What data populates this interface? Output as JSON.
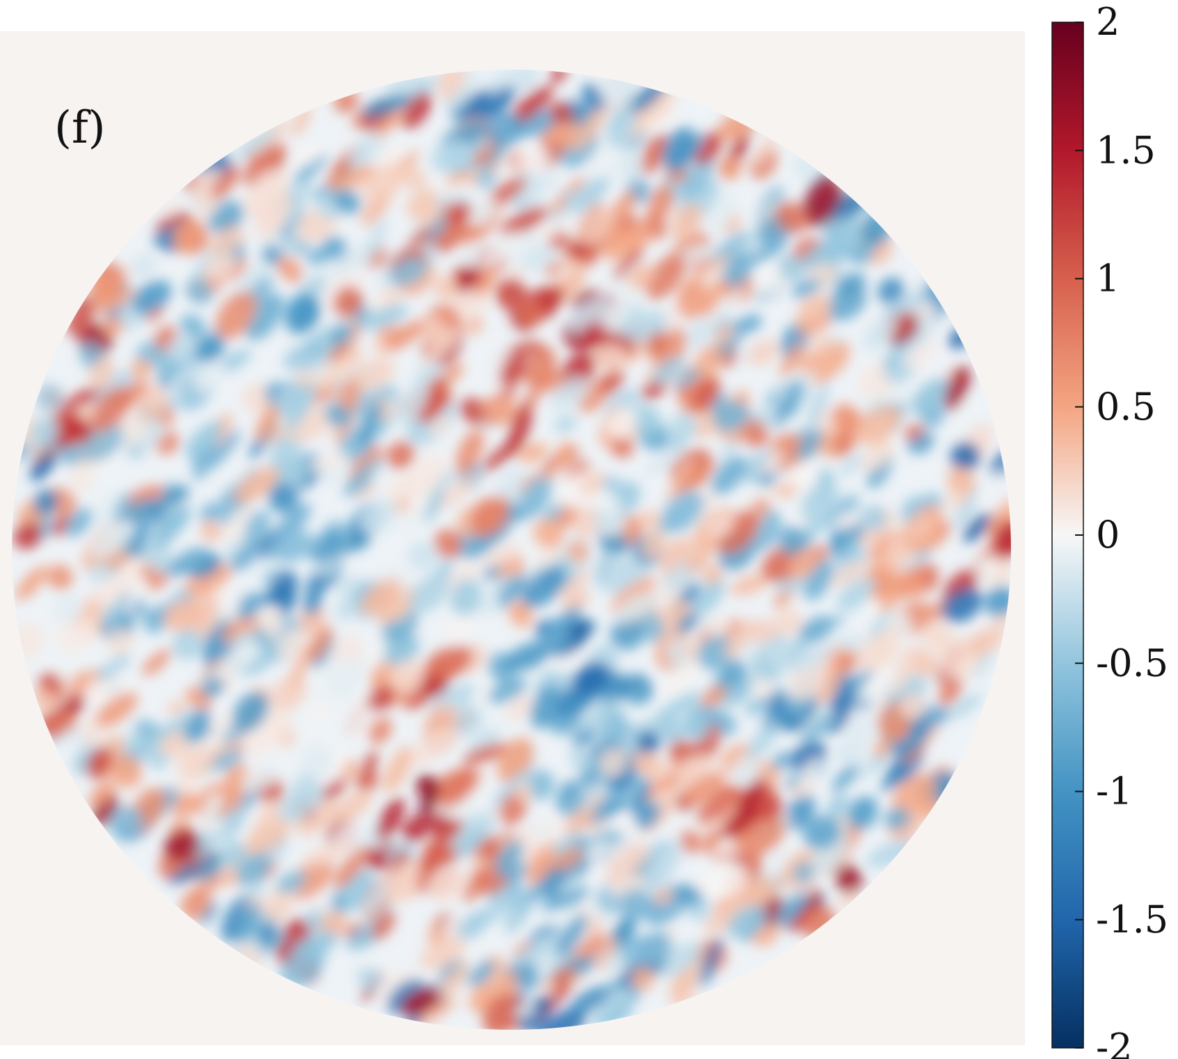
{
  "chart_data": {
    "type": "heatmap",
    "panel_label": "(f)",
    "shape": "circular field, values outside the disk are 0",
    "colormap": "diverging red-blue (RdBu reversed): negative blue, zero white, positive red",
    "colorbar": {
      "orientation": "vertical",
      "placement": "right",
      "range": [
        -2,
        2
      ],
      "ticks": [
        2,
        1.5,
        1,
        0.5,
        0,
        -0.5,
        -1,
        -1.5,
        -2
      ],
      "tick_labels": [
        "2",
        "1.5",
        "1",
        "0.5",
        "0",
        "-0.5",
        "-1",
        "-1.5",
        "-2"
      ]
    },
    "value_range": [
      -2,
      2
    ],
    "notable_regions": [
      {
        "location": "upper-center",
        "sign": "positive",
        "approx_value": 0.8
      },
      {
        "location": "lower-right",
        "sign": "positive",
        "approx_value": 2.0
      },
      {
        "location": "lower-center",
        "sign": "positive",
        "approx_value": 1.3
      },
      {
        "location": "lower-center-right",
        "sign": "negative",
        "approx_value": -1.4
      },
      {
        "location": "left-center",
        "sign": "negative",
        "approx_value": -0.7
      },
      {
        "location": "left edge",
        "sign": "positive",
        "approx_value": 1.6
      },
      {
        "location": "top rim",
        "sign": "negative",
        "approx_value": -1.0
      }
    ]
  }
}
